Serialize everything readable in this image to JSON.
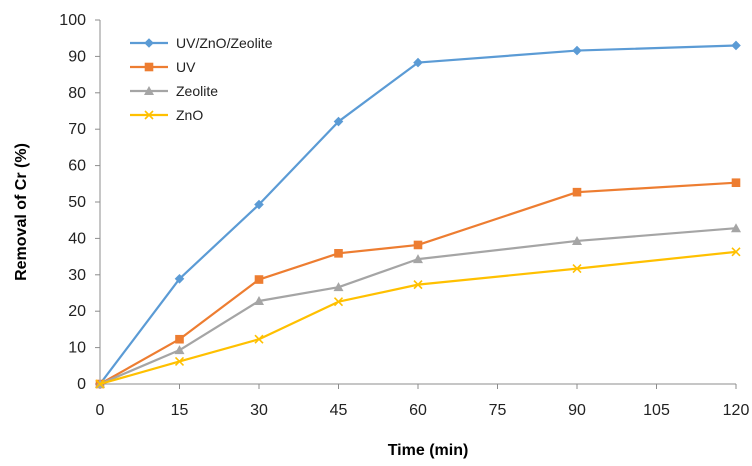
{
  "chart_data": {
    "type": "line",
    "title": "",
    "xlabel": "Time (min)",
    "ylabel": "Removal of Cr (%)",
    "x": [
      0,
      15,
      30,
      45,
      60,
      90,
      120
    ],
    "xticks": [
      0,
      15,
      30,
      45,
      60,
      75,
      90,
      105,
      120
    ],
    "xtick_labels": [
      "0",
      "15",
      "30",
      "45",
      "60",
      "75",
      "90",
      "105",
      "120"
    ],
    "xlim": [
      0,
      120
    ],
    "yticks": [
      0,
      10,
      20,
      30,
      40,
      50,
      60,
      70,
      80,
      90,
      100
    ],
    "ytick_labels": [
      "0",
      "10",
      "20",
      "30",
      "40",
      "50",
      "60",
      "70",
      "80",
      "90",
      "100"
    ],
    "ylim": [
      0,
      100
    ],
    "grid": false,
    "legend_position": "top-left",
    "series": [
      {
        "name": "UV/ZnO/Zeolite",
        "color": "#5B9BD5",
        "marker": "diamond",
        "values": [
          0,
          28.9,
          49.3,
          72.1,
          88.3,
          91.6,
          93
        ]
      },
      {
        "name": "UV",
        "color": "#ED7D31",
        "marker": "square",
        "values": [
          0,
          12.3,
          28.7,
          35.9,
          38.2,
          52.7,
          55.3
        ]
      },
      {
        "name": "Zeolite",
        "color": "#A5A5A5",
        "marker": "triangle",
        "values": [
          0,
          9.3,
          22.8,
          26.6,
          34.3,
          39.3,
          42.8
        ]
      },
      {
        "name": "ZnO",
        "color": "#FFC000",
        "marker": "x",
        "values": [
          0,
          6.2,
          12.3,
          22.6,
          27.3,
          31.7,
          36.3
        ]
      }
    ]
  }
}
